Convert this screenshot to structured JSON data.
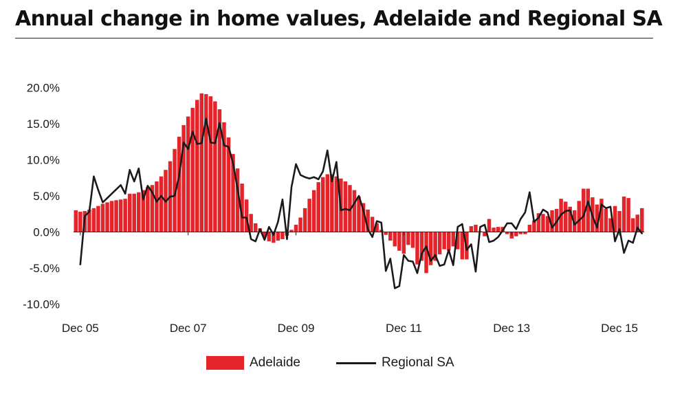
{
  "title": "Annual change in home values, Adelaide and Regional SA",
  "colors": {
    "adelaide": "#e3242b",
    "regional": "#1a1a1a",
    "axis": "#222222"
  },
  "legend": {
    "adelaide_label": "Adelaide",
    "regional_label": "Regional SA"
  },
  "chart_data": {
    "type": "bar",
    "title": "Annual change in home values, Adelaide and Regional SA",
    "xlabel": "",
    "ylabel": "",
    "ylim": [
      -10,
      20
    ],
    "y_ticks": [
      20,
      15,
      10,
      5,
      0,
      -5,
      -10
    ],
    "y_tick_labels": [
      "20.0%",
      "15.0%",
      "10.0%",
      "5.0%",
      "0.0%",
      "-5.0%",
      "-10.0%"
    ],
    "x_tick_labels": [
      "Dec 05",
      "Dec 07",
      "Dec 09",
      "Dec 11",
      "Dec 13",
      "Dec 15"
    ],
    "x_tick_months": [
      "2005-12",
      "2007-12",
      "2009-12",
      "2011-12",
      "2013-12",
      "2015-12"
    ],
    "categories_start": "2005-11",
    "categories_end": "2016-03",
    "grid": false,
    "legend_position": "bottom-center",
    "series": [
      {
        "name": "Adelaide",
        "type": "bar",
        "values": [
          3.0,
          2.8,
          2.9,
          3.1,
          3.3,
          3.6,
          3.9,
          4.1,
          4.3,
          4.4,
          4.5,
          4.6,
          5.3,
          5.3,
          5.5,
          5.8,
          6.2,
          6.5,
          7.0,
          7.7,
          8.6,
          9.8,
          11.5,
          13.2,
          14.8,
          16.0,
          17.2,
          18.3,
          19.2,
          19.1,
          18.8,
          18.1,
          17.0,
          15.2,
          13.1,
          10.8,
          8.8,
          6.7,
          4.5,
          2.5,
          1.2,
          0.5,
          -0.8,
          -1.3,
          -1.5,
          -1.2,
          -1.0,
          -0.5,
          0.3,
          1.0,
          2.0,
          3.3,
          4.6,
          5.8,
          6.9,
          7.6,
          8.0,
          8.0,
          7.7,
          7.4,
          7.0,
          6.5,
          5.8,
          4.9,
          4.0,
          3.1,
          2.1,
          1.2,
          0.3,
          -0.4,
          -1.2,
          -2.0,
          -2.6,
          -3.0,
          -1.8,
          -2.2,
          -4.5,
          -4.0,
          -5.7,
          -4.6,
          -4.0,
          -3.1,
          -2.4,
          -2.6,
          -2.0,
          -2.4,
          -3.8,
          -3.8,
          0.8,
          1.0,
          0.1,
          -0.6,
          1.8,
          0.6,
          0.7,
          0.7,
          -0.3,
          -0.9,
          -0.6,
          -0.3,
          -0.3,
          1.0,
          1.6,
          2.6,
          2.5,
          2.2,
          3.0,
          3.2,
          4.6,
          4.2,
          3.5,
          3.0,
          4.3,
          6.0,
          6.0,
          4.8,
          3.8,
          4.6,
          3.2,
          1.9,
          3.6,
          2.9,
          4.9,
          4.7,
          1.9,
          2.4,
          3.3
        ],
        "color": "#e3242b"
      },
      {
        "name": "Regional SA",
        "type": "line",
        "values": [
          null,
          -4.5,
          2.2,
          2.8,
          7.7,
          5.8,
          4.1,
          4.7,
          5.3,
          5.9,
          6.5,
          5.3,
          8.6,
          7.0,
          8.8,
          4.5,
          6.4,
          5.5,
          4.2,
          5.0,
          4.2,
          4.9,
          5.0,
          7.8,
          12.4,
          11.5,
          13.9,
          12.2,
          12.3,
          15.7,
          12.4,
          12.3,
          15.1,
          12.0,
          11.8,
          9.5,
          6.0,
          2.0,
          2.0,
          -1.0,
          -1.3,
          0.4,
          -1.1,
          0.7,
          -0.4,
          1.4,
          4.5,
          -1.0,
          6.2,
          9.4,
          7.9,
          7.6,
          7.4,
          7.6,
          7.3,
          8.4,
          11.3,
          7.0,
          9.7,
          3.0,
          3.2,
          3.0,
          4.0,
          5.0,
          3.0,
          0.4,
          -0.7,
          1.5,
          1.3,
          -5.4,
          -3.7,
          -7.8,
          -7.5,
          -3.2,
          -4.0,
          -4.1,
          -5.7,
          -3.0,
          -2.0,
          -4.0,
          -3.2,
          -4.7,
          -4.5,
          -2.5,
          -4.6,
          0.7,
          1.1,
          -2.5,
          -1.7,
          -5.5,
          0.7,
          1.0,
          -1.4,
          -1.2,
          -0.7,
          0.2,
          1.2,
          1.2,
          0.4,
          1.8,
          2.7,
          5.5,
          1.4,
          2.0,
          3.1,
          2.7,
          0.6,
          1.4,
          2.4,
          2.9,
          3.0,
          1.0,
          1.6,
          2.2,
          4.2,
          2.2,
          0.6,
          3.8,
          3.3,
          3.5,
          -1.3,
          0.4,
          -2.9,
          -1.2,
          -1.5,
          0.6,
          -0.2
        ],
        "color": "#1a1a1a"
      }
    ]
  }
}
